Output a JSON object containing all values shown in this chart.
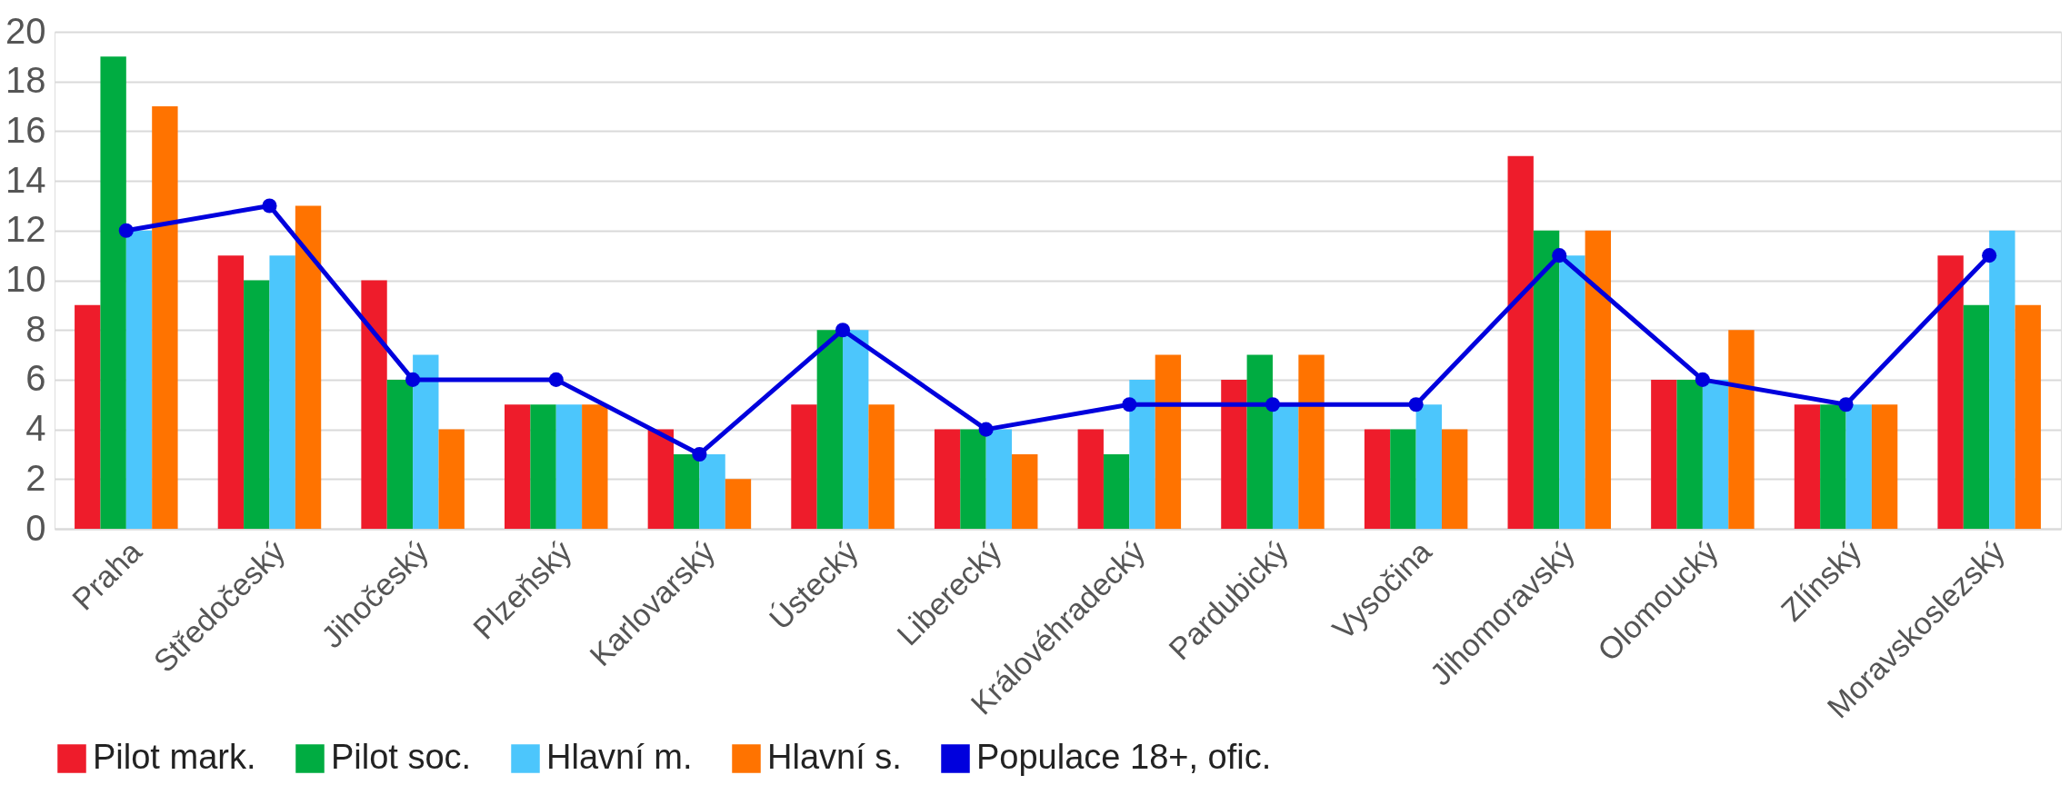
{
  "chart_data": {
    "type": "bar",
    "categories": [
      "Praha",
      "Středočeský",
      "Jihočeský",
      "Plzeňský",
      "Karlovarský",
      "Ústecký",
      "Liberecký",
      "Královéhradecký",
      "Pardubický",
      "Vysočina",
      "Jihomoravský",
      "Olomoucký",
      "Zlínský",
      "Moravskoslezský"
    ],
    "series": [
      {
        "name": "Pilot mark.",
        "color": "#ee1c2b",
        "values": [
          9,
          11,
          10,
          5,
          4,
          5,
          4,
          4,
          6,
          4,
          15,
          6,
          5,
          11
        ]
      },
      {
        "name": "Pilot soc.",
        "color": "#00ac41",
        "values": [
          19,
          10,
          6,
          5,
          3,
          8,
          4,
          3,
          7,
          4,
          12,
          6,
          5,
          9
        ]
      },
      {
        "name": "Hlavní m.",
        "color": "#4cc6fc",
        "values": [
          12,
          11,
          7,
          5,
          3,
          8,
          4,
          6,
          5,
          5,
          11,
          6,
          5,
          12
        ]
      },
      {
        "name": "Hlavní s.",
        "color": "#ff7300",
        "values": [
          17,
          13,
          4,
          5,
          2,
          5,
          3,
          7,
          7,
          4,
          12,
          8,
          5,
          9
        ]
      },
      {
        "name": "Populace 18+, ofic.",
        "color": "#0000dd",
        "type": "line",
        "marker": "circle",
        "values": [
          12,
          13,
          6,
          6,
          3,
          8,
          4,
          5,
          5,
          5,
          11,
          6,
          5,
          11
        ]
      }
    ],
    "ylim": [
      0,
      20
    ],
    "yticks": [
      0,
      2,
      4,
      6,
      8,
      10,
      12,
      14,
      16,
      18,
      20
    ],
    "grid": "y",
    "legend": "bottom"
  }
}
